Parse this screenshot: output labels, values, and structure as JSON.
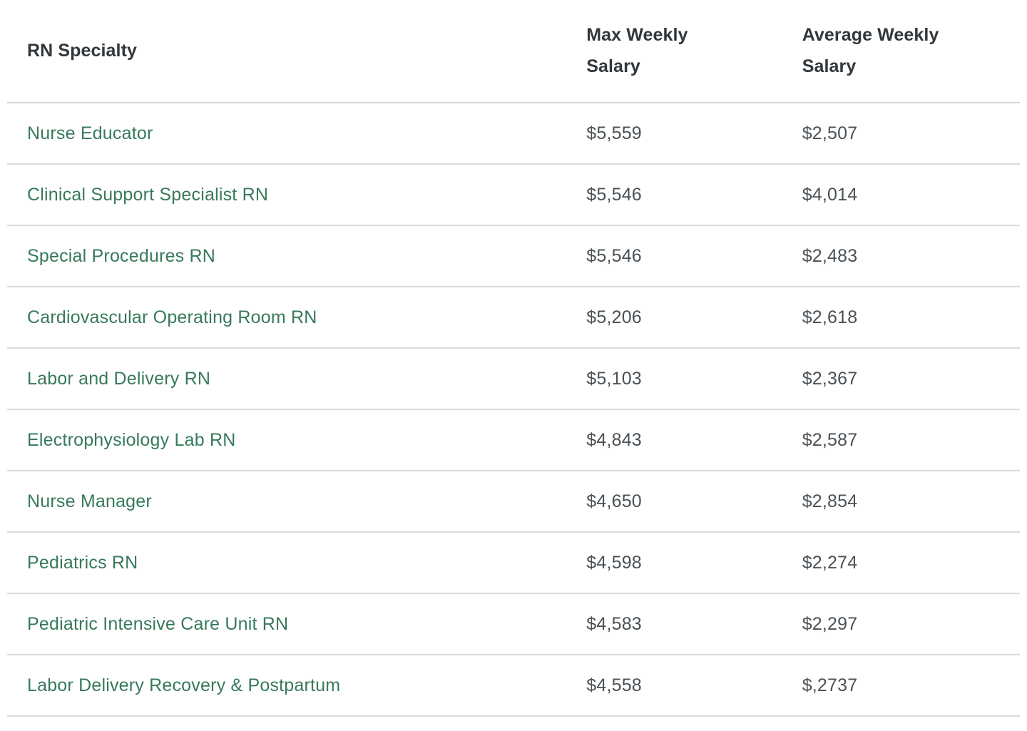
{
  "table": {
    "headers": [
      {
        "label": "RN Specialty"
      },
      {
        "label": "Max Weekly Salary"
      },
      {
        "label": "Average Weekly Salary"
      }
    ],
    "rows": [
      {
        "specialty": "Nurse Educator",
        "max": "$5,559",
        "avg": "$2,507"
      },
      {
        "specialty": "Clinical Support Specialist RN",
        "max": "$5,546",
        "avg": "$4,014"
      },
      {
        "specialty": "Special Procedures RN",
        "max": "$5,546",
        "avg": "$2,483"
      },
      {
        "specialty": "Cardiovascular Operating Room RN",
        "max": "$5,206",
        "avg": "$2,618"
      },
      {
        "specialty": "Labor and Delivery RN",
        "max": "$5,103",
        "avg": "$2,367"
      },
      {
        "specialty": "Electrophysiology Lab RN",
        "max": "$4,843",
        "avg": "$2,587"
      },
      {
        "specialty": "Nurse Manager",
        "max": "$4,650",
        "avg": "$2,854"
      },
      {
        "specialty": "Pediatrics RN",
        "max": "$4,598",
        "avg": "$2,274"
      },
      {
        "specialty": "Pediatric Intensive Care Unit RN",
        "max": "$4,583",
        "avg": "$2,297"
      },
      {
        "specialty": "Labor Delivery Recovery & Postpartum",
        "max": "$4,558",
        "avg": "$,2737"
      }
    ]
  },
  "colors": {
    "specialty_link_green": "#37795b",
    "header_text": "#32373b",
    "value_text": "#4a5156",
    "divider": "#d9dbdc",
    "background": "#ffffff"
  }
}
